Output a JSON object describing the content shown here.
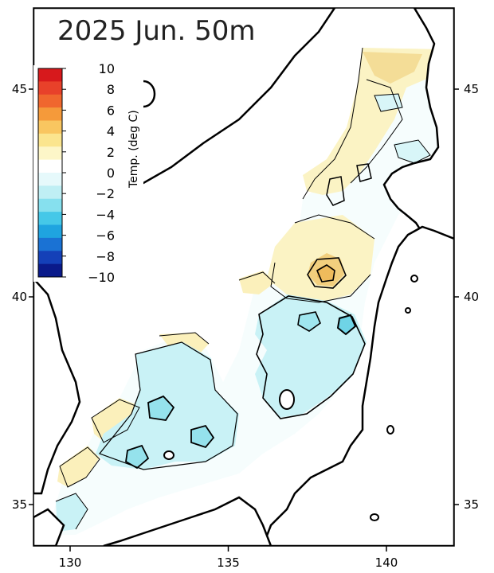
{
  "title": "2025 Jun.   50m",
  "x_ticks": [
    {
      "lon": 130,
      "label": "130"
    },
    {
      "lon": 135,
      "label": "135"
    },
    {
      "lon": 140,
      "label": "140"
    }
  ],
  "y_ticks": [
    {
      "lat": 35,
      "label": "35"
    },
    {
      "lat": 40,
      "label": "40"
    },
    {
      "lat": 45,
      "label": "45"
    }
  ],
  "colorbar": {
    "unit_label": "Temp. (deg C)",
    "min": -10,
    "max": 10,
    "tick_labels": [
      "10",
      "8",
      "6",
      "4",
      "2",
      "0",
      "−2",
      "−4",
      "−6",
      "−8",
      "−10"
    ],
    "colors": [
      "#d7191c",
      "#e8412a",
      "#f0672e",
      "#f59a3a",
      "#f9c660",
      "#fbe58e",
      "#fdf6c8",
      "#ffffff",
      "#e6f9fb",
      "#bfeff4",
      "#86e0ee",
      "#45c8e8",
      "#1fa4e0",
      "#1a72d4",
      "#1440b8",
      "#0a1a8a"
    ]
  },
  "colors": {
    "warm_light": "#fbf6cf",
    "warm_mid": "#f6e6a1",
    "warm_strong": "#f3d483",
    "cold_light": "#e6f9fb",
    "cold_mid": "#b8eef4",
    "cold_strong": "#7fdde9",
    "coast": "#000000"
  }
}
